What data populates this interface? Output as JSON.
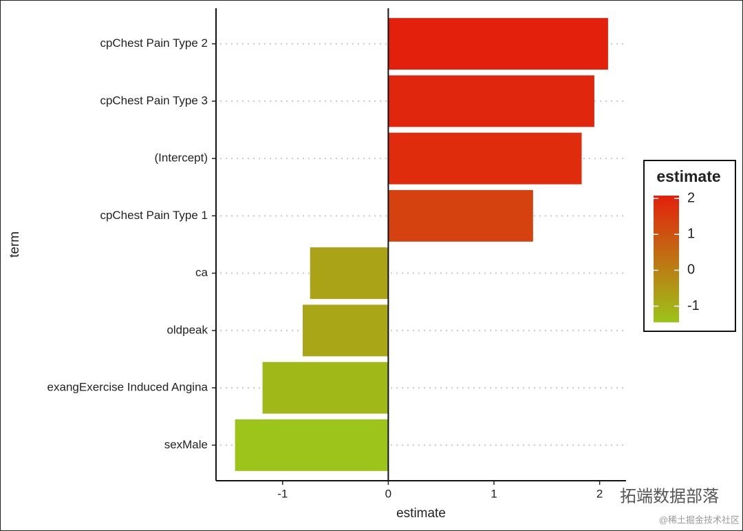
{
  "chart_data": {
    "type": "hbar",
    "x_label": "estimate",
    "y_label": "term",
    "categories": [
      "cpChest Pain Type 2",
      "cpChest Pain Type 3",
      "(Intercept)",
      "cpChest Pain Type 1",
      "ca",
      "oldpeak",
      "exangExercise Induced Angina",
      "sexMale"
    ],
    "values": [
      2.08,
      1.95,
      1.83,
      1.37,
      -0.74,
      -0.81,
      -1.19,
      -1.45
    ],
    "xlim": [
      -1.63,
      2.25
    ],
    "xticks": [
      -1,
      0,
      1,
      2
    ],
    "grid": true,
    "zero_line": true,
    "color_low": "#9cc41a",
    "color_high": "#e3200c",
    "legend": {
      "title": "estimate",
      "position": "right",
      "ticks": [
        2,
        1,
        0,
        -1
      ]
    },
    "watermark": [
      "拓端数据部落",
      "@稀土掘金技术社区"
    ]
  }
}
